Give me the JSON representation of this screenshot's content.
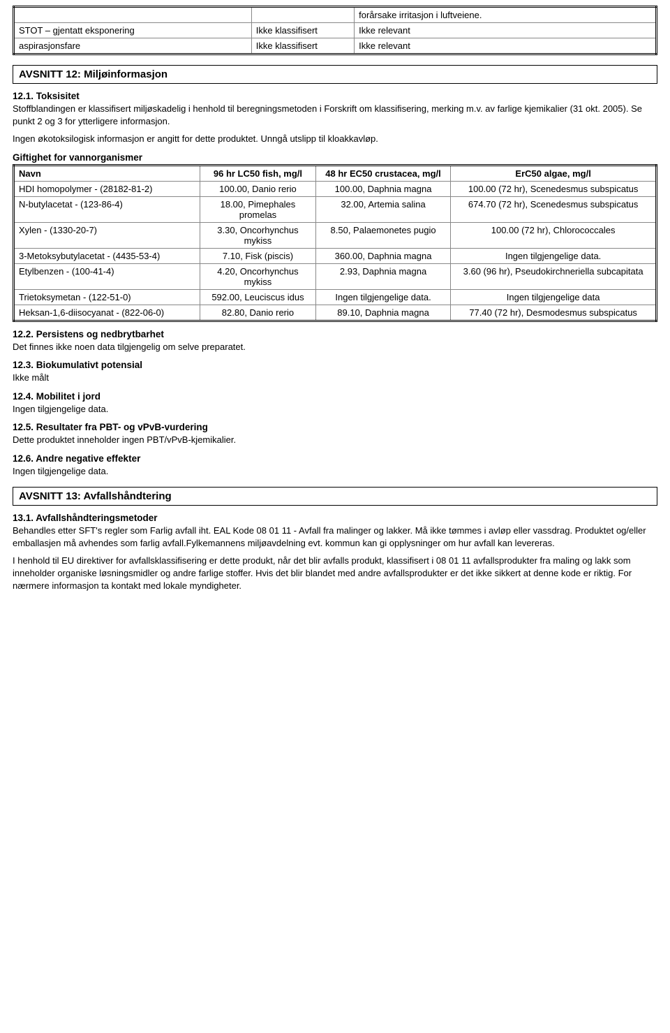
{
  "table1": {
    "rows": [
      [
        "",
        "",
        "forårsake irritasjon i luftveiene."
      ],
      [
        "STOT – gjentatt eksponering",
        "Ikke klassifisert",
        "Ikke relevant"
      ],
      [
        "aspirasjonsfare",
        "Ikke klassifisert",
        "Ikke relevant"
      ]
    ]
  },
  "section12": {
    "title": "AVSNITT 12: Miljøinformasjon",
    "s121_title": "12.1. Toksisitet",
    "s121_p1": "Stoffblandingen er klassifisert miljøskadelig i henhold til beregningsmetoden i Forskrift om klassifisering, merking m.v. av farlige kjemikalier (31 okt. 2005). Se punkt 2 og 3 for ytterligere informasjon.",
    "s121_p2": "Ingen økotoksilogisk informasjon er angitt for dette produktet. Unngå utslipp til kloakkavløp.",
    "tox_heading": "Giftighet for vannorganismer",
    "tox_table": {
      "headers": [
        "Navn",
        "96 hr LC50 fish, mg/l",
        "48 hr EC50 crustacea, mg/l",
        "ErC50 algae, mg/l"
      ],
      "rows": [
        [
          "HDI homopolymer - (28182-81-2)",
          "100.00, Danio rerio",
          "100.00, Daphnia magna",
          "100.00 (72 hr), Scenedesmus subspicatus"
        ],
        [
          "N-butylacetat - (123-86-4)",
          "18.00, Pimephales promelas",
          "32.00, Artemia salina",
          "674.70 (72 hr), Scenedesmus subspicatus"
        ],
        [
          "Xylen - (1330-20-7)",
          "3.30, Oncorhynchus mykiss",
          "8.50, Palaemonetes pugio",
          "100.00 (72 hr), Chlorococcales"
        ],
        [
          "3-Metoksybutylacetat - (4435-53-4)",
          "7.10, Fisk (piscis)",
          "360.00, Daphnia magna",
          "Ingen tilgjengelige data."
        ],
        [
          "Etylbenzen - (100-41-4)",
          "4.20, Oncorhynchus mykiss",
          "2.93, Daphnia magna",
          "3.60 (96 hr), Pseudokirchneriella subcapitata"
        ],
        [
          "Trietoksymetan - (122-51-0)",
          "592.00, Leuciscus idus",
          "Ingen tilgjengelige data.",
          "Ingen tilgjengelige data"
        ],
        [
          "Heksan-1,6-diisocyanat - (822-06-0)",
          "82.80, Danio rerio",
          "89.10, Daphnia magna",
          "77.40 (72 hr), Desmodesmus subspicatus"
        ]
      ]
    },
    "s122_title": "12.2. Persistens og nedbrytbarhet",
    "s122_text": "Det finnes ikke noen data tilgjengelig om selve preparatet.",
    "s123_title": "12.3. Biokumulativt potensial",
    "s123_text": "Ikke målt",
    "s124_title": "12.4. Mobilitet i jord",
    "s124_text": "Ingen tilgjengelige data.",
    "s125_title": "12.5. Resultater fra PBT- og vPvB-vurdering",
    "s125_text": "Dette produktet inneholder ingen PBT/vPvB-kjemikalier.",
    "s126_title": "12.6. Andre negative effekter",
    "s126_text": "Ingen tilgjengelige data."
  },
  "section13": {
    "title": "AVSNITT 13: Avfallshåndtering",
    "s131_title": "13.1. Avfallshåndteringsmetoder",
    "p1": "Behandles etter SFT's regler som Farlig avfall iht. EAL Kode 08 01 11 - Avfall fra malinger og lakker. Må ikke tømmes i avløp eller vassdrag. Produktet og/eller emballasjen må avhendes som farlig avfall.Fylkemannens miljøavdelning evt. kommun kan gi opplysninger om hur avfall kan levereras.",
    "p2": "I henhold til EU direktiver for avfallsklassifisering er dette produkt, når det blir avfalls produkt, klassifisert i 08 01 11 avfallsprodukter fra maling og lakk som inneholder organiske løsningsmidler og andre farlige stoffer. Hvis det blir blandet med andre avfallsprodukter er det ikke sikkert at denne kode er riktig. For nærmere informasjon ta kontakt med lokale myndigheter."
  }
}
